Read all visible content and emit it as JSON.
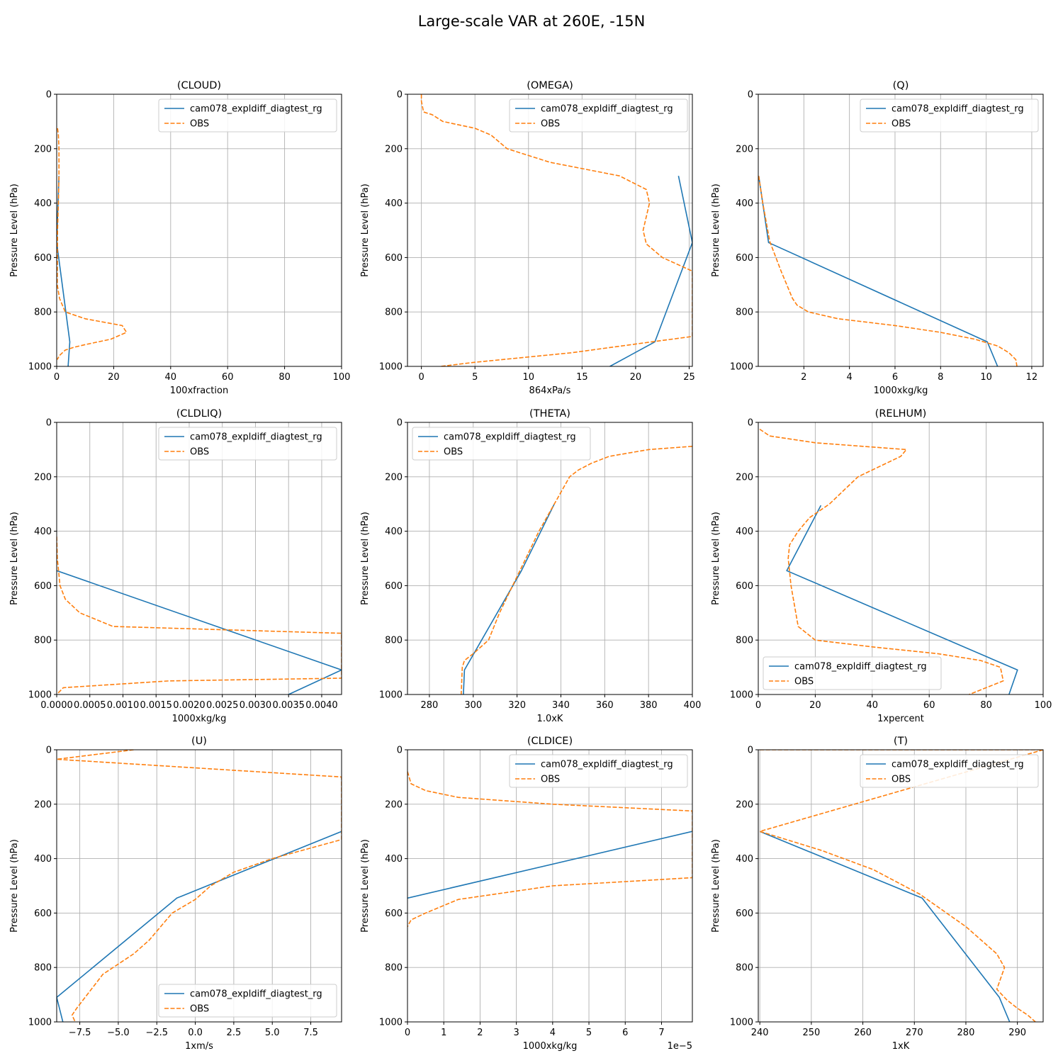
{
  "figure_title": "Large-scale VAR at 260E, -15N",
  "colors": {
    "model": "#1f77b4",
    "obs": "#ff7f0e",
    "grid": "#b0b0b0"
  },
  "chart_data": [
    {
      "type": "line",
      "title": "(CLOUD)",
      "xlabel": "100xfraction",
      "ylabel": "Pressure Level (hPa)",
      "xlim": [
        0,
        100
      ],
      "ylim": [
        1000,
        0
      ],
      "x_ticks": [
        0,
        20,
        40,
        60,
        80,
        100
      ],
      "x_tick_labels": [
        "0",
        "20",
        "40",
        "60",
        "80",
        "100"
      ],
      "y_ticks": [
        0,
        200,
        400,
        600,
        800,
        1000
      ],
      "y_tick_labels": [
        "0",
        "200",
        "400",
        "600",
        "800",
        "1000"
      ],
      "legend": "top-right",
      "grid": true,
      "series": [
        {
          "name": "cam078_expldiff_diagtest_rg",
          "style": "solid",
          "x": [
            0.8,
            0,
            4.6,
            4.0
          ],
          "y": [
            300,
            545,
            910,
            1000
          ]
        },
        {
          "name": "OBS",
          "style": "dashed",
          "x": [
            0.3,
            0.6,
            0.8,
            0.8,
            0.6,
            0.3,
            0.2,
            1.0,
            3.0,
            10,
            23,
            24.5,
            19,
            10,
            6,
            3,
            1,
            0.2
          ],
          "y": [
            125,
            150,
            200,
            300,
            400,
            500,
            700,
            750,
            800,
            825,
            850,
            875,
            900,
            920,
            930,
            940,
            960,
            975
          ]
        }
      ]
    },
    {
      "type": "line",
      "title": "(OMEGA)",
      "xlabel": "864xPa/s",
      "ylabel": "Pressure Level (hPa)",
      "xlim": [
        -1.3,
        25.3
      ],
      "ylim": [
        1000,
        0
      ],
      "x_ticks": [
        0,
        5,
        10,
        15,
        20,
        25
      ],
      "x_tick_labels": [
        "0",
        "5",
        "10",
        "15",
        "20",
        "25"
      ],
      "y_ticks": [
        0,
        200,
        400,
        600,
        800,
        1000
      ],
      "y_tick_labels": [
        "0",
        "200",
        "400",
        "600",
        "800",
        "1000"
      ],
      "legend": "top-right",
      "grid": true,
      "series": [
        {
          "name": "cam078_expldiff_diagtest_rg",
          "style": "solid",
          "x": [
            24.0,
            25.3,
            21.8,
            17.6
          ],
          "y": [
            300,
            545,
            910,
            1000
          ]
        },
        {
          "name": "OBS",
          "style": "dashed",
          "x": [
            0,
            0,
            0.2,
            1.0,
            2.0,
            5.0,
            6.5,
            8.0,
            12,
            18.5,
            21.0,
            21.3,
            20.7,
            21.0,
            22.5,
            25.3,
            25.3,
            21.5,
            14,
            5,
            1.8
          ],
          "y": [
            0,
            25,
            65,
            75,
            100,
            125,
            150,
            200,
            250,
            300,
            350,
            400,
            500,
            550,
            600,
            650,
            890,
            910,
            950,
            985,
            1000
          ]
        }
      ]
    },
    {
      "type": "line",
      "title": "(Q)",
      "xlabel": "1000xkg/kg",
      "ylabel": "Pressure Level (hPa)",
      "xlim": [
        0,
        12.5
      ],
      "ylim": [
        1000,
        0
      ],
      "x_ticks": [
        2,
        4,
        6,
        8,
        10,
        12
      ],
      "x_tick_labels": [
        "2",
        "4",
        "6",
        "8",
        "10",
        "12"
      ],
      "y_ticks": [
        0,
        200,
        400,
        600,
        800,
        1000
      ],
      "y_tick_labels": [
        "0",
        "200",
        "400",
        "600",
        "800",
        "1000"
      ],
      "legend": "top-right",
      "grid": true,
      "series": [
        {
          "name": "cam078_expldiff_diagtest_rg",
          "style": "solid",
          "x": [
            0.02,
            0.45,
            10.05,
            10.5
          ],
          "y": [
            300,
            545,
            910,
            1000
          ]
        },
        {
          "name": "OBS",
          "style": "dashed",
          "x": [
            0.02,
            0.2,
            0.5,
            1.0,
            1.5,
            1.7,
            2.2,
            3.5,
            6.0,
            8.0,
            9.5,
            10.5,
            11.0,
            11.3,
            11.35
          ],
          "y": [
            300,
            400,
            540,
            650,
            750,
            775,
            800,
            825,
            850,
            875,
            900,
            925,
            950,
            975,
            1000
          ]
        }
      ]
    },
    {
      "type": "line",
      "title": "(CLDLIQ)",
      "xlabel": "1000xkg/kg",
      "ylabel": "Pressure Level (hPa)",
      "xlim": [
        0,
        0.0043
      ],
      "ylim": [
        1000,
        0
      ],
      "x_ticks": [
        0,
        0.0005,
        0.001,
        0.0015,
        0.002,
        0.0025,
        0.003,
        0.0035,
        0.004
      ],
      "x_tick_labels": [
        "0.0000",
        "0.0005",
        "0.0010",
        "0.0015",
        "0.0020",
        "0.0025",
        "0.0030",
        "0.0035",
        "0.0040"
      ],
      "y_ticks": [
        0,
        200,
        400,
        600,
        800,
        1000
      ],
      "y_tick_labels": [
        "0",
        "200",
        "400",
        "600",
        "800",
        "1000"
      ],
      "legend": "top-right",
      "grid": true,
      "series": [
        {
          "name": "cam078_expldiff_diagtest_rg",
          "style": "solid",
          "x": [
            0,
            0.0043,
            0.0035
          ],
          "y": [
            545,
            910,
            1000
          ]
        },
        {
          "name": "OBS",
          "style": "dashed",
          "x": [
            0,
            1e-05,
            3e-05,
            5e-05,
            0.00013,
            0.00035,
            0.00085,
            0.0043,
            0.0043,
            0.0017,
            0.0001,
            0
          ],
          "y": [
            420,
            500,
            550,
            600,
            650,
            700,
            750,
            775,
            940,
            950,
            975,
            1000
          ]
        }
      ]
    },
    {
      "type": "line",
      "title": "(THETA)",
      "xlabel": "1.0xK",
      "ylabel": "Pressure Level (hPa)",
      "xlim": [
        270,
        400
      ],
      "ylim": [
        1000,
        0
      ],
      "x_ticks": [
        280,
        300,
        320,
        340,
        360,
        380,
        400
      ],
      "x_tick_labels": [
        "280",
        "300",
        "320",
        "340",
        "360",
        "380",
        "400"
      ],
      "y_ticks": [
        0,
        200,
        400,
        600,
        800,
        1000
      ],
      "y_tick_labels": [
        "0",
        "200",
        "400",
        "600",
        "800",
        "1000"
      ],
      "legend": "top-left",
      "grid": true,
      "series": [
        {
          "name": "cam078_expldiff_diagtest_rg",
          "style": "solid",
          "x": [
            337,
            322,
            296,
            295.5
          ],
          "y": [
            300,
            545,
            910,
            1000
          ]
        },
        {
          "name": "OBS",
          "style": "dashed",
          "x": [
            400,
            380,
            362,
            354,
            348,
            344,
            337,
            330,
            324,
            318,
            312,
            307,
            300,
            296,
            295,
            294.5
          ],
          "y": [
            88,
            100,
            125,
            150,
            175,
            200,
            300,
            400,
            500,
            600,
            700,
            800,
            850,
            875,
            900,
            1000
          ]
        }
      ]
    },
    {
      "type": "line",
      "title": "(RELHUM)",
      "xlabel": "1xpercent",
      "ylabel": "Pressure Level (hPa)",
      "xlim": [
        0,
        100
      ],
      "ylim": [
        1000,
        0
      ],
      "x_ticks": [
        0,
        20,
        40,
        60,
        80,
        100
      ],
      "x_tick_labels": [
        "0",
        "20",
        "40",
        "60",
        "80",
        "100"
      ],
      "y_ticks": [
        0,
        200,
        400,
        600,
        800,
        1000
      ],
      "y_tick_labels": [
        "0",
        "200",
        "400",
        "600",
        "800",
        "1000"
      ],
      "legend": "bottom-left",
      "grid": true,
      "series": [
        {
          "name": "cam078_expldiff_diagtest_rg",
          "style": "solid",
          "x": [
            22,
            10,
            91,
            88
          ],
          "y": [
            305,
            545,
            910,
            1000
          ]
        },
        {
          "name": "OBS",
          "style": "dashed",
          "x": [
            0.5,
            4,
            20,
            52,
            50,
            45,
            35,
            25,
            18,
            14,
            11,
            10.5,
            11,
            11.5,
            14,
            20,
            40,
            63,
            78,
            85,
            86,
            80,
            74
          ],
          "y": [
            25,
            50,
            75,
            100,
            125,
            150,
            200,
            300,
            350,
            400,
            450,
            500,
            550,
            600,
            750,
            800,
            825,
            850,
            875,
            900,
            950,
            975,
            1000
          ]
        }
      ]
    },
    {
      "type": "line",
      "title": "(U)",
      "xlabel": "1xm/s",
      "ylabel": "Pressure Level (hPa)",
      "xlim": [
        -9,
        9.5
      ],
      "ylim": [
        1000,
        0
      ],
      "x_ticks": [
        -7.5,
        -5.0,
        -2.5,
        0.0,
        2.5,
        5.0,
        7.5
      ],
      "x_tick_labels": [
        "−7.5",
        "−5.0",
        "−2.5",
        "0.0",
        "2.5",
        "5.0",
        "7.5"
      ],
      "y_ticks": [
        0,
        200,
        400,
        600,
        800,
        1000
      ],
      "y_tick_labels": [
        "0",
        "200",
        "400",
        "600",
        "800",
        "1000"
      ],
      "legend": "bottom-right",
      "grid": true,
      "series": [
        {
          "name": "cam078_expldiff_diagtest_rg",
          "style": "solid",
          "x": [
            9.5,
            -1.2,
            -9,
            -8.6
          ],
          "y": [
            300,
            545,
            910,
            1000
          ]
        },
        {
          "name": "OBS",
          "style": "dashed",
          "x": [
            -4,
            -9,
            9.5,
            9.5,
            5,
            2.5,
            1,
            0,
            -1.5,
            -3,
            -4,
            -6,
            -7.7,
            -8,
            -7.8
          ],
          "y": [
            0,
            35,
            100,
            330,
            400,
            450,
            500,
            550,
            600,
            700,
            750,
            825,
            950,
            975,
            1000
          ]
        }
      ]
    },
    {
      "type": "line",
      "title": "(CLDICE)",
      "xlabel": "1000xkg/kg",
      "ylabel": "Pressure Level (hPa)",
      "x_offset_label": "1e−5",
      "xlim": [
        0,
        7.85e-05
      ],
      "ylim": [
        1000,
        0
      ],
      "x_ticks": [
        0,
        1e-05,
        2e-05,
        3e-05,
        4e-05,
        5e-05,
        6e-05,
        7e-05
      ],
      "x_tick_labels": [
        "0",
        "1",
        "2",
        "3",
        "4",
        "5",
        "6",
        "7"
      ],
      "y_ticks": [
        0,
        200,
        400,
        600,
        800,
        1000
      ],
      "y_tick_labels": [
        "0",
        "200",
        "400",
        "600",
        "800",
        "1000"
      ],
      "legend": "top-right",
      "grid": true,
      "series": [
        {
          "name": "cam078_expldiff_diagtest_rg",
          "style": "solid",
          "x": [
            7.85e-05,
            0
          ],
          "y": [
            300,
            545
          ]
        },
        {
          "name": "OBS",
          "style": "dashed",
          "x": [
            0,
            1e-06,
            5e-06,
            1.4e-05,
            4e-05,
            7.85e-05,
            7.85e-05,
            4e-05,
            1.4e-05,
            5e-06,
            1e-06,
            0
          ],
          "y": [
            80,
            125,
            150,
            175,
            200,
            225,
            470,
            500,
            550,
            600,
            625,
            650
          ]
        }
      ]
    },
    {
      "type": "line",
      "title": "(T)",
      "xlabel": "1xK",
      "ylabel": "Pressure Level (hPa)",
      "xlim": [
        239.7,
        295
      ],
      "ylim": [
        1000,
        0
      ],
      "x_ticks": [
        240,
        250,
        260,
        270,
        280,
        290
      ],
      "x_tick_labels": [
        "240",
        "250",
        "260",
        "270",
        "280",
        "290"
      ],
      "y_ticks": [
        0,
        200,
        400,
        600,
        800,
        1000
      ],
      "y_tick_labels": [
        "0",
        "200",
        "400",
        "600",
        "800",
        "1000"
      ],
      "legend": "top-right",
      "grid": true,
      "series": [
        {
          "name": "cam078_expldiff_diagtest_rg",
          "style": "solid",
          "x": [
            240,
            271.5,
            286.5,
            288.5
          ],
          "y": [
            300,
            545,
            910,
            1000
          ]
        },
        {
          "name": "OBS",
          "style": "dashed",
          "x": [
            240,
            295,
            240,
            252,
            262,
            271,
            280,
            286,
            287.5,
            286,
            288,
            290,
            292,
            293.5
          ],
          "y": [
            0,
            0,
            300,
            370,
            440,
            530,
            650,
            750,
            800,
            880,
            920,
            950,
            975,
            1000
          ]
        }
      ]
    }
  ]
}
